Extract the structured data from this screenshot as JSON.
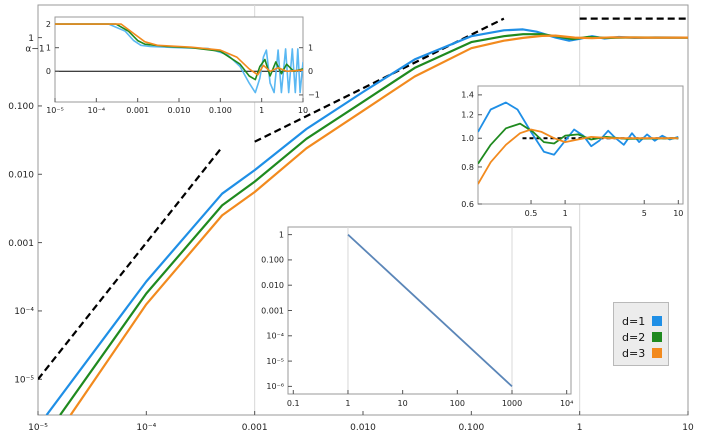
{
  "chart_data": [
    {
      "name": "main",
      "type": "line",
      "xscale": "log",
      "yscale": "log",
      "xlim": [
        1e-05,
        10
      ],
      "ylim": [
        3e-06,
        3
      ],
      "xticks": [
        {
          "v": 1e-05,
          "label": "10⁻⁵"
        },
        {
          "v": 0.0001,
          "label": "10⁻⁴"
        },
        {
          "v": 0.001,
          "label": "0.001"
        },
        {
          "v": 0.01,
          "label": "0.010"
        },
        {
          "v": 0.1,
          "label": "0.100"
        },
        {
          "v": 1,
          "label": "1"
        },
        {
          "v": 10,
          "label": "10"
        }
      ],
      "yticks": [
        {
          "v": 1e-05,
          "label": "10⁻⁵"
        },
        {
          "v": 0.0001,
          "label": "10⁻⁴"
        },
        {
          "v": 0.001,
          "label": "0.001"
        },
        {
          "v": 0.01,
          "label": "0.010"
        },
        {
          "v": 0.1,
          "label": "0.100"
        },
        {
          "v": 1,
          "label": "1"
        }
      ],
      "gridlines_x": [
        0.001,
        1
      ],
      "series": [
        {
          "name": "d=1",
          "color": "#1f8fe6",
          "points": [
            [
              1.2e-05,
              3e-06
            ],
            [
              0.0001,
              0.00027
            ],
            [
              0.0005,
              0.0052
            ],
            [
              0.001,
              0.0115
            ],
            [
              0.003,
              0.046
            ],
            [
              0.01,
              0.16
            ],
            [
              0.03,
              0.48
            ],
            [
              0.1,
              1.05
            ],
            [
              0.2,
              1.28
            ],
            [
              0.3,
              1.32
            ],
            [
              0.4,
              1.22
            ],
            [
              0.6,
              1.0
            ],
            [
              0.8,
              0.9
            ],
            [
              1.0,
              0.96
            ],
            [
              1.3,
              1.05
            ],
            [
              1.7,
              0.97
            ],
            [
              2.3,
              1.02
            ],
            [
              3.2,
              0.99
            ],
            [
              5,
              1.005
            ],
            [
              10,
              1.0
            ]
          ]
        },
        {
          "name": "d=2",
          "color": "#1f8a1f",
          "points": [
            [
              1.6e-05,
              3e-06
            ],
            [
              0.0001,
              0.00018
            ],
            [
              0.0005,
              0.0035
            ],
            [
              0.001,
              0.0078
            ],
            [
              0.003,
              0.033
            ],
            [
              0.01,
              0.115
            ],
            [
              0.03,
              0.36
            ],
            [
              0.1,
              0.86
            ],
            [
              0.2,
              1.05
            ],
            [
              0.3,
              1.12
            ],
            [
              0.45,
              1.12
            ],
            [
              0.6,
              1.05
            ],
            [
              0.85,
              0.95
            ],
            [
              1.2,
              1.02
            ],
            [
              1.7,
              0.99
            ],
            [
              3,
              1.002
            ],
            [
              10,
              1.0
            ]
          ]
        },
        {
          "name": "d=3",
          "color": "#f28a1e",
          "points": [
            [
              2e-05,
              3e-06
            ],
            [
              0.0001,
              0.000125
            ],
            [
              0.0005,
              0.0025
            ],
            [
              0.001,
              0.0055
            ],
            [
              0.003,
              0.024
            ],
            [
              0.01,
              0.085
            ],
            [
              0.03,
              0.27
            ],
            [
              0.1,
              0.7
            ],
            [
              0.2,
              0.9
            ],
            [
              0.3,
              0.99
            ],
            [
              0.45,
              1.06
            ],
            [
              0.6,
              1.07
            ],
            [
              0.9,
              1.0
            ],
            [
              1.3,
              0.98
            ],
            [
              2,
              1.01
            ],
            [
              4,
              1.0
            ],
            [
              10,
              1.0
            ]
          ]
        }
      ],
      "reference_lines": [
        {
          "points": [
            [
              1e-05,
              1e-05
            ],
            [
              0.0005,
              0.025
            ]
          ]
        },
        {
          "points": [
            [
              0.001,
              0.03
            ],
            [
              0.2,
              1.9
            ]
          ]
        },
        {
          "points": [
            [
              1,
              1.9
            ],
            [
              10,
              1.9
            ]
          ]
        }
      ]
    },
    {
      "name": "inset_alpha",
      "type": "line",
      "xscale": "log",
      "yscale": "linear",
      "xlim": [
        1e-05,
        10
      ],
      "ylim": [
        -1.3,
        2.3
      ],
      "ylabel": "α−1",
      "xticks": [
        {
          "v": 1e-05,
          "label": "10⁻⁵"
        },
        {
          "v": 0.0001,
          "label": "10⁻⁴"
        },
        {
          "v": 0.001,
          "label": "0.001"
        },
        {
          "v": 0.01,
          "label": "0.010"
        },
        {
          "v": 0.1,
          "label": "0.100"
        },
        {
          "v": 1,
          "label": "1"
        },
        {
          "v": 10,
          "label": "10"
        }
      ],
      "yticks_left": [
        {
          "v": 0,
          "label": "0"
        },
        {
          "v": 1,
          "label": "1"
        },
        {
          "v": 2,
          "label": "2"
        }
      ],
      "yticks_right": [
        {
          "v": -1,
          "label": "−1"
        },
        {
          "v": 0,
          "label": "0"
        },
        {
          "v": 1,
          "label": "1"
        }
      ],
      "series": [
        {
          "name": "d=1",
          "color": "#5ab8f2",
          "points": [
            [
              1e-05,
              2.0
            ],
            [
              0.0002,
              2.0
            ],
            [
              0.0005,
              1.7
            ],
            [
              0.0008,
              1.3
            ],
            [
              0.0012,
              1.1
            ],
            [
              0.002,
              1.05
            ],
            [
              0.01,
              1.0
            ],
            [
              0.05,
              0.97
            ],
            [
              0.15,
              0.7
            ],
            [
              0.3,
              0.2
            ],
            [
              0.5,
              -0.5
            ],
            [
              0.7,
              -0.9
            ],
            [
              0.9,
              -0.3
            ],
            [
              1.1,
              0.6
            ],
            [
              1.3,
              0.9
            ],
            [
              1.6,
              -0.5
            ],
            [
              2,
              -0.9
            ],
            [
              2.5,
              0.9
            ],
            [
              3,
              -0.9
            ],
            [
              3.8,
              0.95
            ],
            [
              4.5,
              -0.9
            ],
            [
              5.5,
              0.95
            ],
            [
              6.5,
              -0.9
            ],
            [
              7.5,
              0.95
            ],
            [
              8.5,
              -0.9
            ],
            [
              10,
              0.4
            ]
          ]
        },
        {
          "name": "d=2",
          "color": "#1f8a1f",
          "points": [
            [
              1e-05,
              2.0
            ],
            [
              0.0003,
              2.0
            ],
            [
              0.0006,
              1.7
            ],
            [
              0.001,
              1.3
            ],
            [
              0.0015,
              1.15
            ],
            [
              0.005,
              1.05
            ],
            [
              0.02,
              1.0
            ],
            [
              0.1,
              0.85
            ],
            [
              0.3,
              0.3
            ],
            [
              0.5,
              -0.2
            ],
            [
              0.7,
              -0.35
            ],
            [
              0.9,
              0.2
            ],
            [
              1.2,
              0.5
            ],
            [
              1.6,
              -0.2
            ],
            [
              2.2,
              0.4
            ],
            [
              3,
              -0.1
            ],
            [
              4,
              0.3
            ],
            [
              6,
              0.0
            ],
            [
              10,
              0.1
            ]
          ]
        },
        {
          "name": "d=3",
          "color": "#f28a1e",
          "points": [
            [
              1e-05,
              2.0
            ],
            [
              0.0004,
              2.0
            ],
            [
              0.0008,
              1.6
            ],
            [
              0.0015,
              1.25
            ],
            [
              0.003,
              1.1
            ],
            [
              0.02,
              1.02
            ],
            [
              0.1,
              0.9
            ],
            [
              0.25,
              0.6
            ],
            [
              0.5,
              0.1
            ],
            [
              0.8,
              -0.15
            ],
            [
              1.1,
              0.25
            ],
            [
              1.6,
              0.0
            ],
            [
              2.5,
              0.15
            ],
            [
              4,
              0.0
            ],
            [
              10,
              0.05
            ]
          ]
        }
      ]
    },
    {
      "name": "inset_zoom",
      "type": "line",
      "xscale": "log",
      "yscale": "log",
      "xlim": [
        0.17,
        11
      ],
      "ylim": [
        0.6,
        1.5
      ],
      "xticks": [
        {
          "v": 0.5,
          "label": "0.5"
        },
        {
          "v": 1,
          "label": "1"
        },
        {
          "v": 5,
          "label": "5"
        },
        {
          "v": 10,
          "label": "10"
        }
      ],
      "yticks": [
        {
          "v": 0.6,
          "label": "0.6"
        },
        {
          "v": 0.8,
          "label": "0.8"
        },
        {
          "v": 1.0,
          "label": "1.0"
        },
        {
          "v": 1.2,
          "label": "1.2"
        },
        {
          "v": 1.4,
          "label": "1.4"
        }
      ],
      "series": [
        {
          "name": "d=1",
          "color": "#1f8fe6",
          "points": [
            [
              0.17,
              1.05
            ],
            [
              0.22,
              1.25
            ],
            [
              0.3,
              1.32
            ],
            [
              0.38,
              1.25
            ],
            [
              0.5,
              1.05
            ],
            [
              0.65,
              0.9
            ],
            [
              0.8,
              0.88
            ],
            [
              1.0,
              0.98
            ],
            [
              1.2,
              1.07
            ],
            [
              1.45,
              1.02
            ],
            [
              1.7,
              0.94
            ],
            [
              2,
              0.98
            ],
            [
              2.4,
              1.06
            ],
            [
              2.8,
              1.0
            ],
            [
              3.3,
              0.95
            ],
            [
              3.9,
              1.04
            ],
            [
              4.5,
              0.97
            ],
            [
              5.3,
              1.03
            ],
            [
              6.2,
              0.98
            ],
            [
              7.2,
              1.02
            ],
            [
              8.4,
              0.99
            ],
            [
              10,
              1.01
            ]
          ]
        },
        {
          "name": "d=2",
          "color": "#1f8a1f",
          "points": [
            [
              0.17,
              0.82
            ],
            [
              0.22,
              0.95
            ],
            [
              0.3,
              1.08
            ],
            [
              0.4,
              1.12
            ],
            [
              0.52,
              1.05
            ],
            [
              0.65,
              0.97
            ],
            [
              0.8,
              0.96
            ],
            [
              1.0,
              1.02
            ],
            [
              1.3,
              1.03
            ],
            [
              1.7,
              0.99
            ],
            [
              2.3,
              1.01
            ],
            [
              3.5,
              0.995
            ],
            [
              10,
              1.0
            ]
          ]
        },
        {
          "name": "d=3",
          "color": "#f28a1e",
          "points": [
            [
              0.17,
              0.7
            ],
            [
              0.22,
              0.83
            ],
            [
              0.3,
              0.95
            ],
            [
              0.4,
              1.04
            ],
            [
              0.5,
              1.07
            ],
            [
              0.62,
              1.05
            ],
            [
              0.8,
              1.0
            ],
            [
              1.0,
              0.97
            ],
            [
              1.3,
              0.99
            ],
            [
              1.7,
              1.01
            ],
            [
              2.5,
              1.0
            ],
            [
              10,
              1.0
            ]
          ]
        }
      ],
      "reference_lines": [
        {
          "points": [
            [
              0.42,
              1.0
            ],
            [
              10,
              1.0
            ]
          ]
        }
      ]
    },
    {
      "name": "inset_decay",
      "type": "line",
      "xscale": "log",
      "yscale": "log",
      "xlim": [
        0.08,
        12000
      ],
      "ylim": [
        5e-07,
        2
      ],
      "xticks": [
        {
          "v": 0.1,
          "label": "0.1"
        },
        {
          "v": 1,
          "label": "1"
        },
        {
          "v": 10,
          "label": "10"
        },
        {
          "v": 100,
          "label": "100"
        },
        {
          "v": 1000,
          "label": "1000"
        },
        {
          "v": 10000,
          "label": "10⁴"
        }
      ],
      "yticks": [
        {
          "v": 1,
          "label": "1"
        },
        {
          "v": 0.1,
          "label": "0.100"
        },
        {
          "v": 0.01,
          "label": "0.010"
        },
        {
          "v": 0.001,
          "label": "0.001"
        },
        {
          "v": 0.0001,
          "label": "10⁻⁴"
        },
        {
          "v": 1e-05,
          "label": "10⁻⁵"
        },
        {
          "v": 1e-06,
          "label": "10⁻⁶"
        }
      ],
      "gridlines_x": [
        1,
        1000
      ],
      "series": [
        {
          "name": "decay",
          "color": "#5b86b8",
          "points": [
            [
              1,
              1
            ],
            [
              1000,
              1e-06
            ]
          ]
        }
      ]
    }
  ],
  "legend": {
    "items": [
      {
        "label": "d=1",
        "color": "#1f8fe6"
      },
      {
        "label": "d=2",
        "color": "#1f8a1f"
      },
      {
        "label": "d=3",
        "color": "#f28a1e"
      }
    ]
  }
}
